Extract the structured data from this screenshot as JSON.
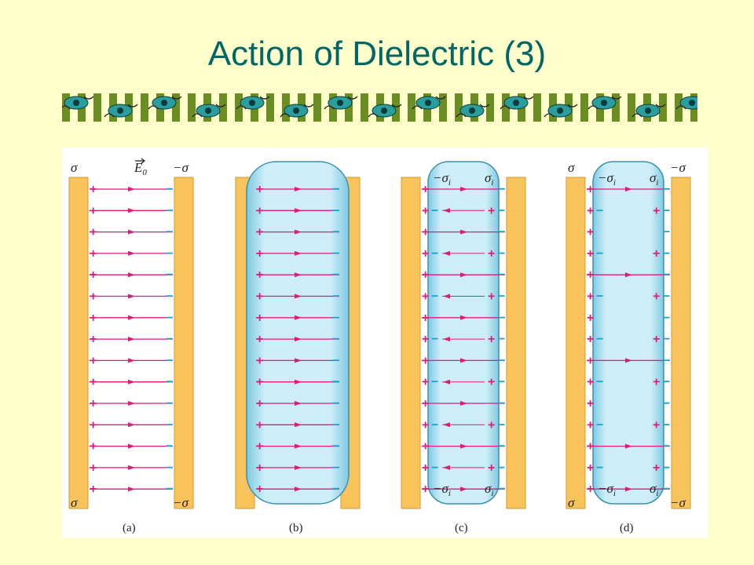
{
  "slide": {
    "title": "Action of Dielectric (3)"
  },
  "colors": {
    "background": "#ffffcc",
    "title": "#006666",
    "plate": "#f7c35a",
    "dielectric": "#bfe6f3",
    "field_line": "#e0197a",
    "negative_charge": "#1a9fd0",
    "strip_green": "#6b8e23",
    "strip_flower": "#2a9d9d"
  },
  "border_decoration": {
    "icon": "flower-strip-icon"
  },
  "diagram": {
    "plate_left_label": "σ",
    "plate_right_label": "−σ",
    "field_label": "E",
    "field_subscript": "0",
    "induced_neg_label": "−σ",
    "induced_pos_label": "σ",
    "induced_subscript": "i",
    "plus_sign": "+",
    "minus_sign": "−",
    "panels": [
      {
        "caption": "(a)"
      },
      {
        "caption": "(b)"
      },
      {
        "caption": "(c)"
      },
      {
        "caption": "(d)"
      }
    ]
  }
}
